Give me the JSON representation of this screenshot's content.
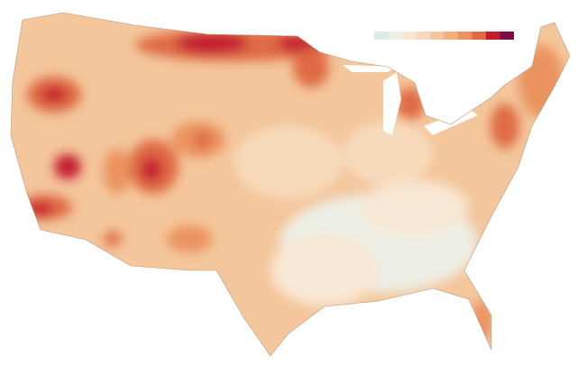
{
  "legend": {
    "colors": [
      "#dde9ea",
      "#edeee5",
      "#f8e7d4",
      "#f7dabb",
      "#f4c69b",
      "#f1b07c",
      "#eb935e",
      "#df6a44",
      "#c51b30",
      "#7a0f47"
    ]
  }
}
